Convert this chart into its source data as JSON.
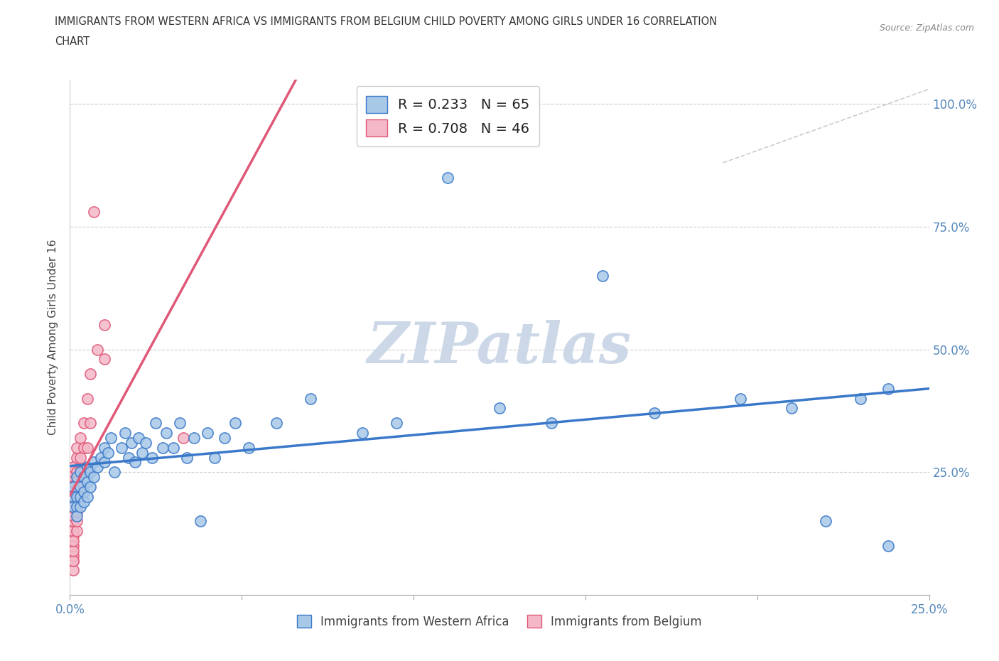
{
  "title_line1": "IMMIGRANTS FROM WESTERN AFRICA VS IMMIGRANTS FROM BELGIUM CHILD POVERTY AMONG GIRLS UNDER 16 CORRELATION",
  "title_line2": "CHART",
  "source": "Source: ZipAtlas.com",
  "ylabel": "Child Poverty Among Girls Under 16",
  "xlim": [
    0.0,
    0.25
  ],
  "ylim": [
    0.0,
    1.05
  ],
  "x_ticks": [
    0.0,
    0.05,
    0.1,
    0.15,
    0.2,
    0.25
  ],
  "x_tick_labels": [
    "0.0%",
    "",
    "",
    "",
    "",
    "25.0%"
  ],
  "y_ticks": [
    0.0,
    0.25,
    0.5,
    0.75,
    1.0
  ],
  "y_tick_labels_right": [
    "",
    "25.0%",
    "50.0%",
    "75.0%",
    "100.0%"
  ],
  "western_africa_R": 0.233,
  "western_africa_N": 65,
  "belgium_R": 0.708,
  "belgium_N": 46,
  "scatter_color_wa": "#a8c8e8",
  "scatter_color_be": "#f4b8c8",
  "line_color_wa": "#3a78c9",
  "line_color_be": "#e05878",
  "watermark": "ZIPatlas",
  "watermark_color": "#ccd8e8",
  "legend_wa_label": "R = 0.233   N = 65",
  "legend_be_label": "R = 0.708   N = 46",
  "bottom_label_wa": "Immigrants from Western Africa",
  "bottom_label_be": "Immigrants from Belgium",
  "wa_x": [
    0.001,
    0.001,
    0.001,
    0.002,
    0.002,
    0.002,
    0.002,
    0.003,
    0.003,
    0.003,
    0.003,
    0.004,
    0.004,
    0.004,
    0.005,
    0.005,
    0.005,
    0.006,
    0.006,
    0.007,
    0.007,
    0.008,
    0.009,
    0.01,
    0.01,
    0.011,
    0.012,
    0.013,
    0.015,
    0.016,
    0.017,
    0.018,
    0.019,
    0.02,
    0.021,
    0.022,
    0.024,
    0.025,
    0.027,
    0.028,
    0.03,
    0.032,
    0.034,
    0.036,
    0.038,
    0.04,
    0.042,
    0.045,
    0.048,
    0.052,
    0.06,
    0.07,
    0.085,
    0.095,
    0.11,
    0.125,
    0.14,
    0.155,
    0.17,
    0.195,
    0.21,
    0.22,
    0.23,
    0.238,
    0.238
  ],
  "wa_y": [
    0.22,
    0.2,
    0.18,
    0.24,
    0.2,
    0.18,
    0.16,
    0.25,
    0.22,
    0.2,
    0.18,
    0.24,
    0.21,
    0.19,
    0.26,
    0.23,
    0.2,
    0.25,
    0.22,
    0.27,
    0.24,
    0.26,
    0.28,
    0.3,
    0.27,
    0.29,
    0.32,
    0.25,
    0.3,
    0.33,
    0.28,
    0.31,
    0.27,
    0.32,
    0.29,
    0.31,
    0.28,
    0.35,
    0.3,
    0.33,
    0.3,
    0.35,
    0.28,
    0.32,
    0.15,
    0.33,
    0.28,
    0.32,
    0.35,
    0.3,
    0.35,
    0.4,
    0.33,
    0.35,
    0.85,
    0.38,
    0.35,
    0.65,
    0.37,
    0.4,
    0.38,
    0.15,
    0.4,
    0.42,
    0.1
  ],
  "be_x": [
    0.001,
    0.001,
    0.001,
    0.001,
    0.001,
    0.001,
    0.001,
    0.001,
    0.001,
    0.001,
    0.001,
    0.001,
    0.001,
    0.001,
    0.001,
    0.001,
    0.001,
    0.001,
    0.001,
    0.001,
    0.002,
    0.002,
    0.002,
    0.002,
    0.002,
    0.002,
    0.002,
    0.002,
    0.002,
    0.003,
    0.003,
    0.003,
    0.003,
    0.003,
    0.004,
    0.004,
    0.004,
    0.005,
    0.005,
    0.006,
    0.006,
    0.007,
    0.008,
    0.01,
    0.01,
    0.033
  ],
  "be_y": [
    0.05,
    0.07,
    0.08,
    0.1,
    0.12,
    0.13,
    0.15,
    0.16,
    0.18,
    0.19,
    0.2,
    0.21,
    0.22,
    0.23,
    0.24,
    0.25,
    0.26,
    0.07,
    0.09,
    0.11,
    0.13,
    0.15,
    0.17,
    0.19,
    0.21,
    0.23,
    0.25,
    0.28,
    0.3,
    0.2,
    0.22,
    0.25,
    0.28,
    0.32,
    0.25,
    0.3,
    0.35,
    0.3,
    0.4,
    0.35,
    0.45,
    0.78,
    0.5,
    0.55,
    0.48,
    0.32
  ],
  "ref_line_x": [
    0.19,
    0.25
  ],
  "ref_line_y": [
    0.88,
    1.03
  ]
}
